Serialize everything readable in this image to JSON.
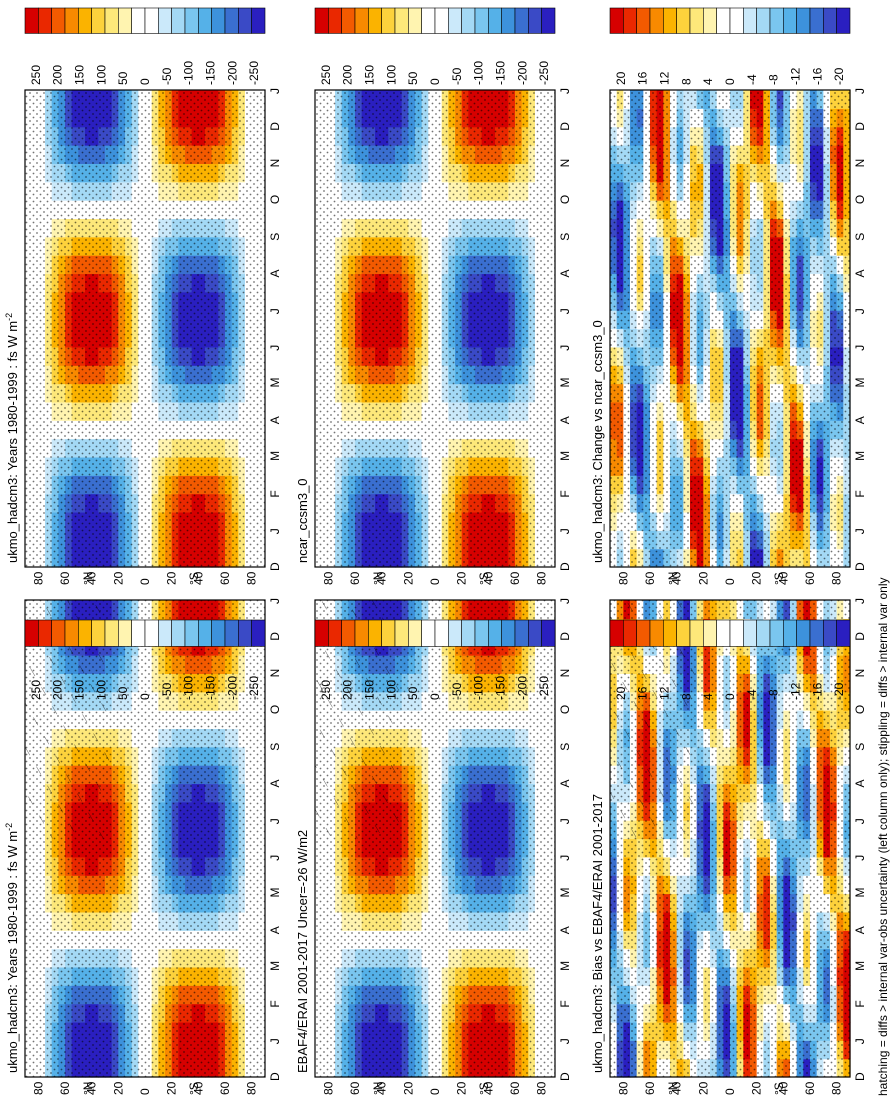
{
  "figure": {
    "footnote": "hatching = diffs > internal var-obs uncertainty (left column only); stippling = diffs > internal var only"
  },
  "months": [
    "D",
    "J",
    "F",
    "M",
    "A",
    "M",
    "J",
    "J",
    "A",
    "S",
    "O",
    "N",
    "D",
    "J"
  ],
  "lat_ticks": [
    "80",
    "60",
    "40",
    "20",
    "0",
    "20",
    "40",
    "60",
    "80"
  ],
  "lat_axis_labels": {
    "north": "°N",
    "south": "°S"
  },
  "colorbars": {
    "full": {
      "labels": [
        "250",
        "200",
        "150",
        "100",
        "50",
        "0",
        "-50",
        "-100",
        "-150",
        "-200",
        "-250"
      ],
      "colors": [
        "#d60000",
        "#ea2800",
        "#f35a00",
        "#f88a00",
        "#fbb300",
        "#fdd23c",
        "#fde87a",
        "#fff4b0",
        "#ffffff",
        "#ffffff",
        "#cbe9fa",
        "#a4d9f5",
        "#7ac6ef",
        "#55b1e8",
        "#3d92dc",
        "#3a6fd0",
        "#3a4ac6",
        "#2a1fc0"
      ]
    },
    "diff": {
      "labels": [
        "20",
        "16",
        "12",
        "8",
        "4",
        "0",
        "-4",
        "-8",
        "-12",
        "-16",
        "-20"
      ],
      "colors": [
        "#d60000",
        "#ea2800",
        "#f35a00",
        "#f88a00",
        "#fbb300",
        "#fdd23c",
        "#fde87a",
        "#fff4b0",
        "#ffffff",
        "#ffffff",
        "#cbe9fa",
        "#a4d9f5",
        "#7ac6ef",
        "#55b1e8",
        "#3d92dc",
        "#3a6fd0",
        "#3a4ac6",
        "#2a1fc0"
      ]
    }
  },
  "panels": [
    {
      "id": "p00",
      "title": "ukmo_hadcm3: Years 1980-1999 : fs W m",
      "title_sup": "-2",
      "colorbar": "full",
      "kind": "full",
      "hatch": true
    },
    {
      "id": "p01",
      "title": "ukmo_hadcm3: Years 1980-1999 : fs W m",
      "title_sup": "-2",
      "colorbar": "full",
      "kind": "full",
      "hatch": false
    },
    {
      "id": "p10",
      "title": "EBAF4/ERAI 2001-2017 Uncer=-26 W/m2",
      "title_sup": "",
      "colorbar": "full",
      "kind": "full",
      "hatch": true
    },
    {
      "id": "p11",
      "title": "ncar_ccsm3_0",
      "title_sup": "",
      "colorbar": "full",
      "kind": "full",
      "hatch": false
    },
    {
      "id": "p20",
      "title": "ukmo_hadcm3: Bias vs EBAF4/ERAI 2001-2017",
      "title_sup": "",
      "colorbar": "diff",
      "kind": "diff",
      "hatch": true
    },
    {
      "id": "p21",
      "title": "ukmo_hadcm3: Change vs ncar_ccsm3_0",
      "title_sup": "",
      "colorbar": "diff",
      "kind": "diff",
      "hatch": false
    }
  ],
  "chart_data": [
    {
      "type": "heatmap",
      "title": "ukmo_hadcm3: Years 1980-1999 : fs W m-2",
      "x": "month (D..J)",
      "y": "latitude 90N-90S",
      "zlim": [
        -250,
        250
      ],
      "variable": "surface shortwave flux seasonal anomaly",
      "pattern": "positive (~+150) in N. summer north of equator, negative (~-150) in S. winter; reversed in N. winter"
    },
    {
      "type": "heatmap",
      "title": "ukmo_hadcm3: Years 1980-1999 : fs W m-2",
      "zlim": [
        -250,
        250
      ]
    },
    {
      "type": "heatmap",
      "title": "EBAF4/ERAI 2001-2017 Uncer=-26 W/m2",
      "zlim": [
        -250,
        250
      ]
    },
    {
      "type": "heatmap",
      "title": "ncar_ccsm3_0",
      "zlim": [
        -250,
        250
      ]
    },
    {
      "type": "heatmap",
      "title": "ukmo_hadcm3: Bias vs EBAF4/ERAI 2001-2017",
      "zlim": [
        -20,
        20
      ]
    },
    {
      "type": "heatmap",
      "title": "ukmo_hadcm3: Change vs ncar_ccsm3_0",
      "zlim": [
        -20,
        20
      ]
    }
  ]
}
